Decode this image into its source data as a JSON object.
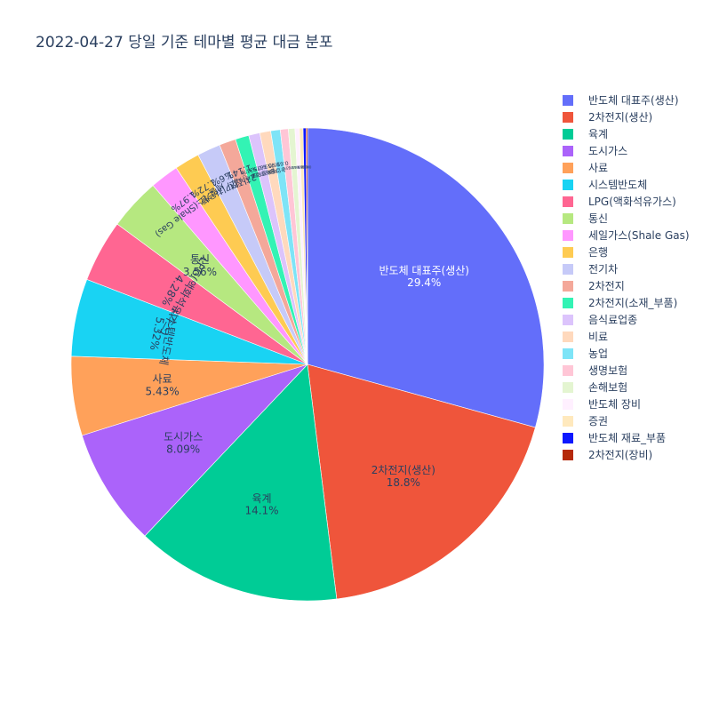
{
  "chart_data": {
    "type": "pie",
    "title": "2022-04-27 당일 기준 테마별 평균 대금 분포",
    "legend_position": "right",
    "slices": [
      {
        "label": "반도체 대표주(생산)",
        "value": 29.4,
        "value_label": "29.4%",
        "color": "#636efa"
      },
      {
        "label": "2차전지(생산)",
        "value": 18.8,
        "value_label": "18.8%",
        "color": "#EF553B"
      },
      {
        "label": "육계",
        "value": 14.1,
        "value_label": "14.1%",
        "color": "#00cc96"
      },
      {
        "label": "도시가스",
        "value": 8.09,
        "value_label": "8.09%",
        "color": "#ab63fa"
      },
      {
        "label": "사료",
        "value": 5.43,
        "value_label": "5.43%",
        "color": "#FFA15A"
      },
      {
        "label": "시스템반도체",
        "value": 5.32,
        "value_label": "5.32%",
        "color": "#19d3f3"
      },
      {
        "label": "LPG(액화석유가스)",
        "value": 4.28,
        "value_label": "4.28%",
        "color": "#FF6692"
      },
      {
        "label": "통신",
        "value": 3.56,
        "value_label": "3.56%",
        "color": "#B6E880"
      },
      {
        "label": "세일가스(Shale Gas)",
        "value": 1.97,
        "value_label": "1.97%",
        "color": "#FF97FF"
      },
      {
        "label": "은행",
        "value": 1.72,
        "value_label": "1.72%",
        "color": "#FECB52"
      },
      {
        "label": "전기차",
        "value": 1.6,
        "value_label": "1.6%",
        "color": "#c6caf8"
      },
      {
        "label": "2차전지",
        "value": 1.14,
        "value_label": "1.14%",
        "color": "#f4a89a"
      },
      {
        "label": "2차전지(소재_부품)",
        "value": 0.931,
        "value_label": "0.931%",
        "color": "#33f3b4"
      },
      {
        "label": "음식료업종",
        "value": 0.767,
        "value_label": "0.767%",
        "color": "#dcc4fc"
      },
      {
        "label": "비료",
        "value": 0.75,
        "value_label": "0.75%",
        "color": "#ffd9bd"
      },
      {
        "label": "농업",
        "value": 0.65,
        "value_label": "0.65%",
        "color": "#7ee4f7"
      },
      {
        "label": "생명보험",
        "value": 0.55,
        "value_label": "0.55%",
        "color": "#ffc6d6"
      },
      {
        "label": "손해보험",
        "value": 0.45,
        "value_label": "0.45%",
        "color": "#e4f5d1"
      },
      {
        "label": "반도체 장비",
        "value": 0.3,
        "value_label": "0.3%",
        "color": "#fff0ff"
      },
      {
        "label": "증권",
        "value": 0.25,
        "value_label": "0.25%",
        "color": "#ffe9bd"
      },
      {
        "label": "반도체 재료_부품",
        "value": 0.2,
        "value_label": "0.2%",
        "color": "#0d18ff"
      },
      {
        "label": "2차전지(장비)",
        "value": 0.1,
        "value_label": "0.1%",
        "color": "#b52a0a"
      }
    ]
  }
}
